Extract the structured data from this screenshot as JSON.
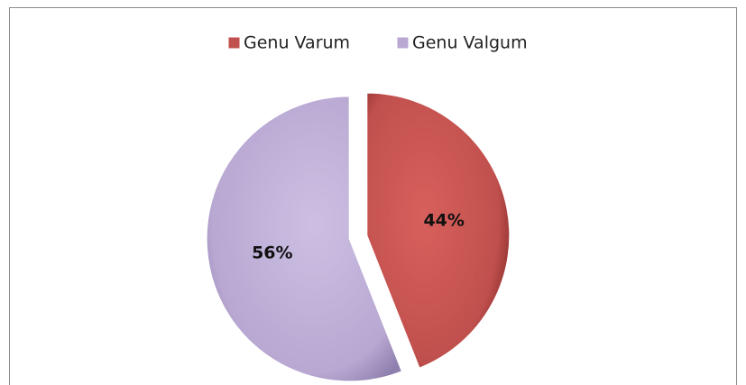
{
  "chart_data": {
    "type": "pie",
    "categories": [
      "Genu Varum",
      "Genu Valgum"
    ],
    "values": [
      44,
      56
    ],
    "value_labels": [
      "44%",
      "56%"
    ],
    "colors": [
      "#c0504d",
      "#b8a8d2"
    ],
    "legend": "top"
  }
}
